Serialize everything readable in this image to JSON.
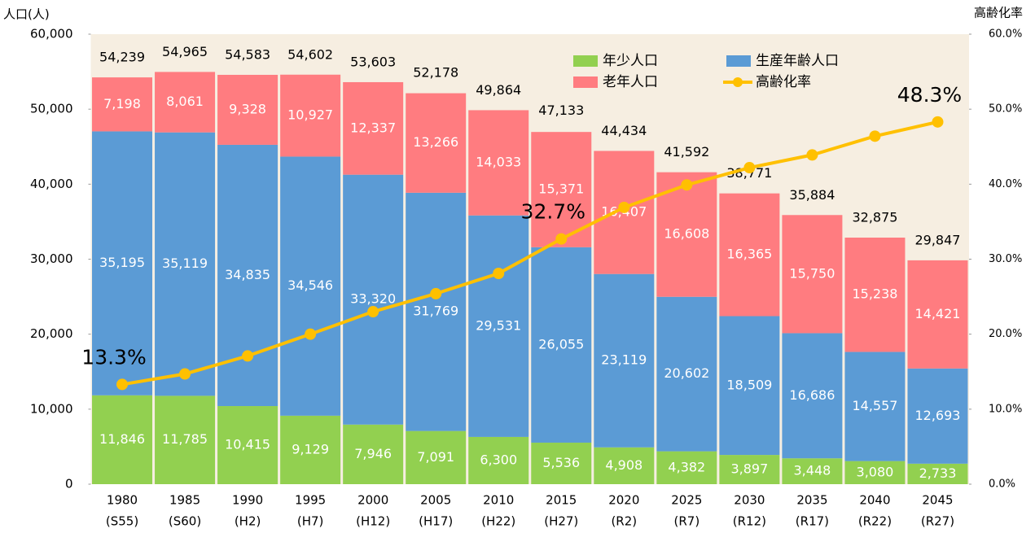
{
  "chart_data": {
    "type": "bar",
    "stacked": true,
    "y_axis_title": "人口(人)",
    "y2_axis_title": "高齢化率",
    "categories": [
      "1980",
      "1985",
      "1990",
      "1995",
      "2000",
      "2005",
      "2010",
      "2015",
      "2020",
      "2025",
      "2030",
      "2035",
      "2040",
      "2045"
    ],
    "era_labels": [
      "(S55)",
      "(S60)",
      "(H2)",
      "(H7)",
      "(H12)",
      "(H17)",
      "(H22)",
      "(H27)",
      "(R2)",
      "(R7)",
      "(R12)",
      "(R17)",
      "(R22)",
      "(R27)"
    ],
    "series": [
      {
        "name": "年少人口",
        "color": "#92d050",
        "values": [
          11846,
          11785,
          10415,
          9129,
          7946,
          7091,
          6300,
          5536,
          4908,
          4382,
          3897,
          3448,
          3080,
          2733
        ],
        "value_labels": [
          "11,846",
          "11,785",
          "10,415",
          "9,129",
          "7,946",
          "7,091",
          "6,300",
          "5,536",
          "4,908",
          "4,382",
          "3,897",
          "3,448",
          "3,080",
          "2,733"
        ]
      },
      {
        "name": "生産年齢人口",
        "color": "#5b9bd5",
        "values": [
          35195,
          35119,
          34835,
          34546,
          33320,
          31769,
          29531,
          26055,
          23119,
          20602,
          18509,
          16686,
          14557,
          12693
        ],
        "value_labels": [
          "35,195",
          "35,119",
          "34,835",
          "34,546",
          "33,320",
          "31,769",
          "29,531",
          "26,055",
          "23,119",
          "20,602",
          "18,509",
          "16,686",
          "14,557",
          "12,693"
        ]
      },
      {
        "name": "老年人口",
        "color": "#ff7c80",
        "values": [
          7198,
          8061,
          9328,
          10927,
          12337,
          13266,
          14033,
          15371,
          16407,
          16608,
          16365,
          15750,
          15238,
          14421
        ],
        "value_labels": [
          "7,198",
          "8,061",
          "9,328",
          "10,927",
          "12,337",
          "13,266",
          "14,033",
          "15,371",
          "16,407",
          "16,608",
          "16,365",
          "15,750",
          "15,238",
          "14,421"
        ]
      },
      {
        "name": "高齢化率",
        "type": "line",
        "axis": "y2",
        "color": "#ffc000",
        "values": [
          13.3,
          14.7,
          17.1,
          20.0,
          23.0,
          25.4,
          28.1,
          32.7,
          36.9,
          39.9,
          42.2,
          43.9,
          46.4,
          48.3
        ],
        "value_labels": [
          "13.3%",
          null,
          null,
          null,
          null,
          null,
          null,
          "32.7%",
          null,
          null,
          null,
          null,
          null,
          "48.3%"
        ]
      }
    ],
    "totals": [
      54239,
      54965,
      54583,
      54602,
      53603,
      52178,
      49864,
      47133,
      44434,
      41592,
      38771,
      35884,
      32875,
      29847
    ],
    "total_labels": [
      "54,239",
      "54,965",
      "54,583",
      "54,602",
      "53,603",
      "52,178",
      "49,864",
      "47,133",
      "44,434",
      "41,592",
      "38,771",
      "35,884",
      "32,875",
      "29,847"
    ],
    "ylim": [
      0,
      60000
    ],
    "yticks": [
      0,
      {
        "value": 10000,
        "label": "10,000"
      },
      {
        "value": 20000,
        "label": "20,000"
      },
      {
        "value": 30000,
        "label": "30,000"
      },
      {
        "value": 40000,
        "label": "40,000"
      },
      {
        "value": 50000,
        "label": "50,000"
      },
      {
        "value": 60000,
        "label": "60,000"
      }
    ],
    "y2lim": [
      0,
      60
    ],
    "y2ticks": [
      {
        "value": 0,
        "label": "0.0%"
      },
      {
        "value": 10,
        "label": "10.0%"
      },
      {
        "value": 20,
        "label": "20.0%"
      },
      {
        "value": 30,
        "label": "30.0%"
      },
      {
        "value": 40,
        "label": "40.0%"
      },
      {
        "value": 50,
        "label": "50.0%"
      },
      {
        "value": 60,
        "label": "60.0%"
      }
    ],
    "grid": false,
    "legend": "top-right",
    "plot_background": "#f6eee1"
  }
}
